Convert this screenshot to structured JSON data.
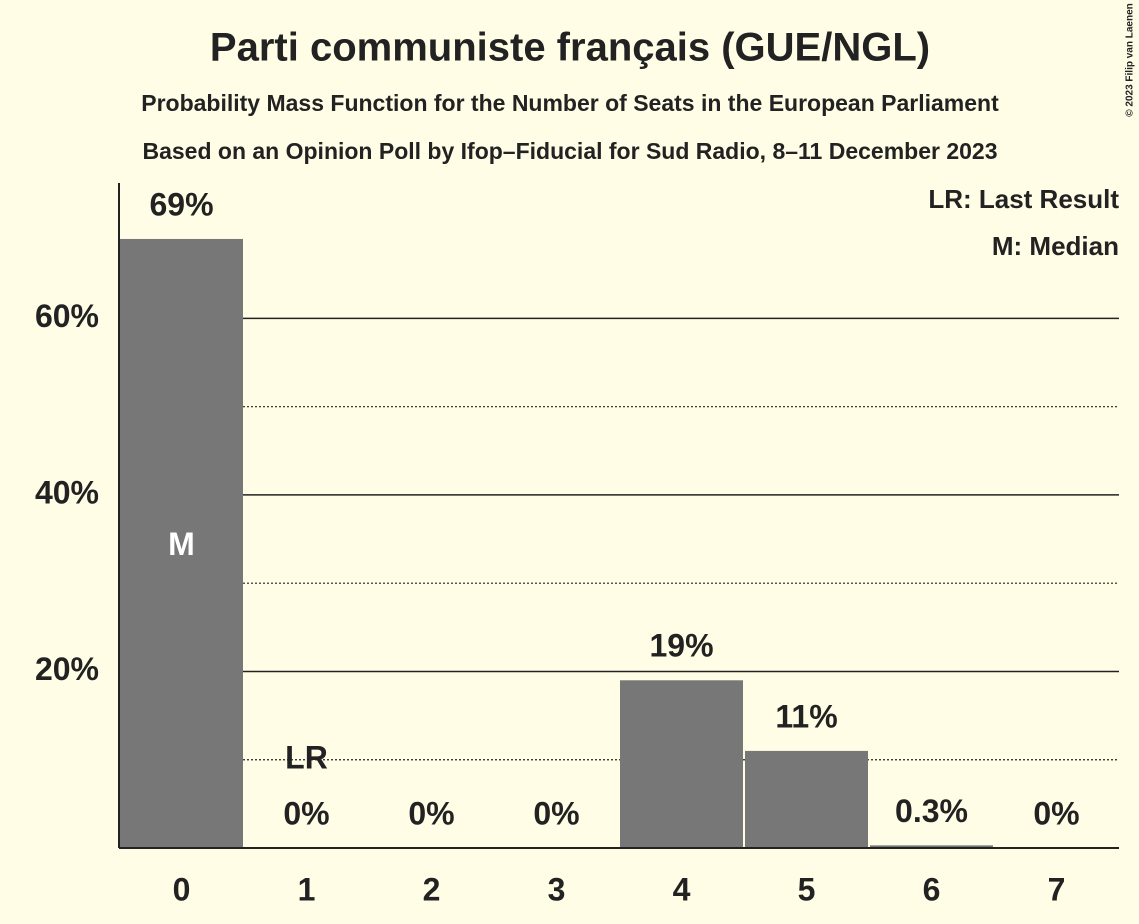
{
  "chart_data": {
    "type": "bar",
    "title": "Parti communiste français (GUE/NGL)",
    "subtitle": "Probability Mass Function for the Number of Seats in the European Parliament",
    "source": "Based on an Opinion Poll by Ifop–Fiducial for Sud Radio, 8–11 December 2023",
    "copyright": "© 2023 Filip van Laenen",
    "categories": [
      "0",
      "1",
      "2",
      "3",
      "4",
      "5",
      "6",
      "7"
    ],
    "values": [
      69,
      0,
      0,
      0,
      19,
      11,
      0.3,
      0
    ],
    "value_labels": [
      "69%",
      "0%",
      "0%",
      "0%",
      "19%",
      "11%",
      "0.3%",
      "0%"
    ],
    "color": "#777777",
    "ylim": [
      0,
      75
    ],
    "yticks": [
      {
        "value": 20,
        "label": "20%"
      },
      {
        "value": 40,
        "label": "40%"
      },
      {
        "value": 60,
        "label": "60%"
      }
    ],
    "minor_yticks": [
      10,
      30,
      50
    ],
    "grid": true,
    "median": {
      "category": "0",
      "label": "M"
    },
    "last_result": {
      "category": "1",
      "label": "LR"
    },
    "legend": [
      "LR: Last Result",
      "M: Median"
    ],
    "legend_position": "upper right"
  }
}
